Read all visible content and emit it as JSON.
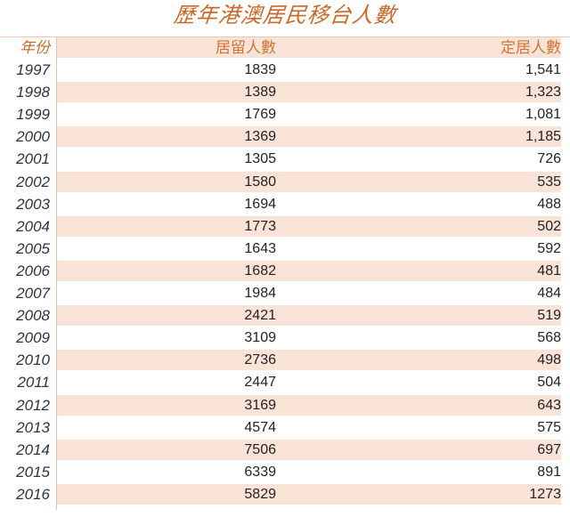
{
  "title": "歷年港澳居民移台人數",
  "table": {
    "headers": {
      "year": "年份",
      "residence": "居留人數",
      "settlement": "定居人數"
    },
    "rows": [
      {
        "year": "1997",
        "residence": "1839",
        "settlement": "1,541"
      },
      {
        "year": "1998",
        "residence": "1389",
        "settlement": "1,323"
      },
      {
        "year": "1999",
        "residence": "1769",
        "settlement": "1,081"
      },
      {
        "year": "2000",
        "residence": "1369",
        "settlement": "1,185"
      },
      {
        "year": "2001",
        "residence": "1305",
        "settlement": "726"
      },
      {
        "year": "2002",
        "residence": "1580",
        "settlement": "535"
      },
      {
        "year": "2003",
        "residence": "1694",
        "settlement": "488"
      },
      {
        "year": "2004",
        "residence": "1773",
        "settlement": "502"
      },
      {
        "year": "2005",
        "residence": "1643",
        "settlement": "592"
      },
      {
        "year": "2006",
        "residence": "1682",
        "settlement": "481"
      },
      {
        "year": "2007",
        "residence": "1984",
        "settlement": "484"
      },
      {
        "year": "2008",
        "residence": "2421",
        "settlement": "519"
      },
      {
        "year": "2009",
        "residence": "3109",
        "settlement": "568"
      },
      {
        "year": "2010",
        "residence": "2736",
        "settlement": "498"
      },
      {
        "year": "2011",
        "residence": "2447",
        "settlement": "504"
      },
      {
        "year": "2012",
        "residence": "3169",
        "settlement": "643"
      },
      {
        "year": "2013",
        "residence": "4574",
        "settlement": "575"
      },
      {
        "year": "2014",
        "residence": "7506",
        "settlement": "697"
      },
      {
        "year": "2015",
        "residence": "6339",
        "settlement": "891"
      },
      {
        "year": "2016",
        "residence": "5829",
        "settlement": "1273"
      }
    ]
  },
  "colors": {
    "accent": "#c8692a",
    "band": "#f9e2d6",
    "rule": "#e6c3ad"
  }
}
